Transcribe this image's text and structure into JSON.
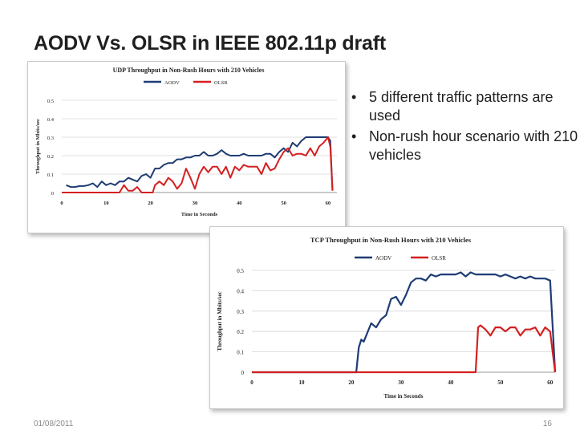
{
  "slide": {
    "title": "AODV Vs. OLSR in IEEE 802.11p draft",
    "bullets": [
      "5 different traffic patterns are used",
      "Non-rush hour scenario with 210 vehicles"
    ],
    "footer_date": "01/08/2011",
    "page_number": "16",
    "bullet_glyph": "•"
  },
  "chart_data": [
    {
      "type": "line",
      "title": "UDP Throughput in Non-Rush Hours with 210 Vehicles",
      "xlabel": "Time in Seconds",
      "ylabel": "Throughput in Mbits/sec",
      "xlim": [
        0,
        62
      ],
      "ylim": [
        0,
        0.5
      ],
      "xticks": [
        0,
        10,
        20,
        30,
        40,
        50,
        60
      ],
      "yticks": [
        0,
        0.1,
        0.2,
        0.3,
        0.4,
        0.5
      ],
      "grid": true,
      "legend_position": "top",
      "series": [
        {
          "name": "AODV",
          "color": "#1f3c74",
          "x": [
            1,
            2,
            3,
            4,
            5,
            6,
            7,
            8,
            9,
            10,
            11,
            12,
            13,
            14,
            15,
            16,
            17,
            18,
            19,
            20,
            21,
            22,
            23,
            24,
            25,
            26,
            27,
            28,
            29,
            30,
            31,
            32,
            33,
            34,
            35,
            36,
            37,
            38,
            39,
            40,
            41,
            42,
            43,
            44,
            45,
            46,
            47,
            48,
            49,
            50,
            51,
            52,
            53,
            54,
            55,
            56,
            57,
            58,
            59,
            60,
            60.5,
            61
          ],
          "y": [
            0.04,
            0.03,
            0.03,
            0.035,
            0.035,
            0.04,
            0.05,
            0.03,
            0.06,
            0.04,
            0.05,
            0.04,
            0.06,
            0.06,
            0.08,
            0.07,
            0.06,
            0.09,
            0.1,
            0.08,
            0.13,
            0.13,
            0.15,
            0.16,
            0.16,
            0.18,
            0.18,
            0.19,
            0.19,
            0.2,
            0.2,
            0.22,
            0.2,
            0.2,
            0.21,
            0.23,
            0.21,
            0.2,
            0.2,
            0.2,
            0.21,
            0.2,
            0.2,
            0.2,
            0.2,
            0.21,
            0.21,
            0.19,
            0.22,
            0.24,
            0.22,
            0.27,
            0.25,
            0.28,
            0.3,
            0.3,
            0.3,
            0.3,
            0.3,
            0.3,
            0.28,
            0.01
          ]
        },
        {
          "name": "OLSR",
          "color": "#d42020",
          "x": [
            0,
            13,
            14,
            15,
            16,
            17,
            18,
            19,
            20,
            20.5,
            21,
            22,
            23,
            24,
            25,
            26,
            27,
            28,
            29,
            30,
            31,
            32,
            33,
            34,
            35,
            36,
            37,
            38,
            39,
            40,
            41,
            42,
            43,
            44,
            45,
            46,
            47,
            48,
            49,
            50,
            51,
            52,
            53,
            54,
            55,
            56,
            57,
            58,
            59,
            60,
            60.5,
            61
          ],
          "y": [
            0,
            0,
            0.04,
            0.01,
            0.01,
            0.03,
            0,
            0,
            0,
            0,
            0.04,
            0.06,
            0.04,
            0.08,
            0.06,
            0.02,
            0.05,
            0.13,
            0.08,
            0.02,
            0.1,
            0.14,
            0.11,
            0.14,
            0.14,
            0.1,
            0.14,
            0.08,
            0.14,
            0.12,
            0.15,
            0.14,
            0.14,
            0.14,
            0.1,
            0.16,
            0.12,
            0.13,
            0.18,
            0.22,
            0.24,
            0.2,
            0.21,
            0.21,
            0.2,
            0.24,
            0.2,
            0.25,
            0.27,
            0.3,
            0.25,
            0.01
          ]
        }
      ]
    },
    {
      "type": "line",
      "title": "TCP Throughput in Non-Rush Hours with 210 Vehicles",
      "xlabel": "Time in Seconds",
      "ylabel": "Throughput in Mbits/sec",
      "xlim": [
        0,
        61
      ],
      "ylim": [
        0,
        0.5
      ],
      "xticks": [
        0,
        10,
        20,
        30,
        40,
        50,
        60
      ],
      "yticks": [
        0,
        0.1,
        0.2,
        0.3,
        0.4,
        0.5
      ],
      "grid": true,
      "legend_position": "top",
      "series": [
        {
          "name": "AODV",
          "color": "#1f3c74",
          "x": [
            0,
            21,
            21.5,
            22,
            22.5,
            23,
            24,
            25,
            26,
            27,
            28,
            29,
            30,
            31,
            32,
            33,
            34,
            35,
            36,
            37,
            38,
            39,
            40,
            41,
            42,
            43,
            44,
            45,
            46,
            47,
            48,
            49,
            50,
            51,
            52,
            53,
            54,
            55,
            56,
            57,
            58,
            59,
            60,
            61
          ],
          "y": [
            0,
            0,
            0.12,
            0.16,
            0.15,
            0.18,
            0.24,
            0.22,
            0.26,
            0.28,
            0.36,
            0.37,
            0.33,
            0.38,
            0.44,
            0.46,
            0.46,
            0.45,
            0.48,
            0.47,
            0.48,
            0.48,
            0.48,
            0.48,
            0.49,
            0.47,
            0.49,
            0.48,
            0.48,
            0.48,
            0.48,
            0.48,
            0.47,
            0.48,
            0.47,
            0.46,
            0.47,
            0.46,
            0.47,
            0.46,
            0.46,
            0.46,
            0.45,
            0
          ]
        },
        {
          "name": "OLSR",
          "color": "#d42020",
          "x": [
            0,
            45,
            45.5,
            46,
            47,
            48,
            49,
            50,
            51,
            52,
            53,
            54,
            55,
            56,
            57,
            58,
            59,
            60,
            61
          ],
          "y": [
            0,
            0,
            0.22,
            0.23,
            0.21,
            0.18,
            0.22,
            0.22,
            0.2,
            0.22,
            0.22,
            0.18,
            0.21,
            0.21,
            0.22,
            0.18,
            0.22,
            0.2,
            0
          ]
        }
      ]
    }
  ]
}
